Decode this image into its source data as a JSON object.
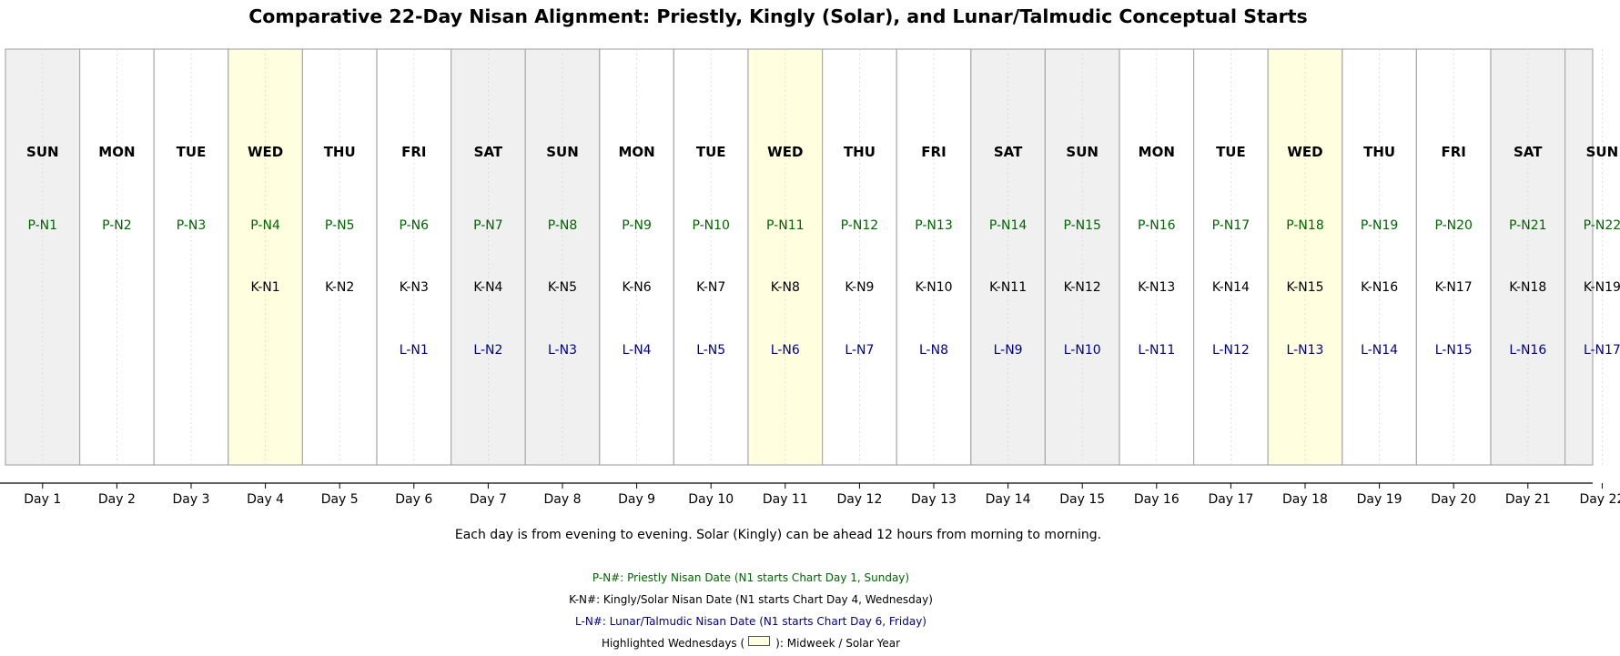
{
  "chart_data": {
    "type": "table",
    "title": "Comparative 22-Day Nisan Alignment: Priestly, Kingly (Solar), and Lunar/Talmudic Conceptual Starts",
    "x": [
      "Day 1",
      "Day 2",
      "Day 3",
      "Day 4",
      "Day 5",
      "Day 6",
      "Day 7",
      "Day 8",
      "Day 9",
      "Day 10",
      "Day 11",
      "Day 12",
      "Day 13",
      "Day 14",
      "Day 15",
      "Day 16",
      "Day 17",
      "Day 18",
      "Day 19",
      "Day 20",
      "Day 21",
      "Day 22"
    ],
    "weekdays": [
      "SUN",
      "MON",
      "TUE",
      "WED",
      "THU",
      "FRI",
      "SAT",
      "SUN",
      "MON",
      "TUE",
      "WED",
      "THU",
      "FRI",
      "SAT",
      "SUN",
      "MON",
      "TUE",
      "WED",
      "THU",
      "FRI",
      "SAT",
      "SUN"
    ],
    "series": [
      {
        "name": "P-N#",
        "values": [
          "P-N1",
          "P-N2",
          "P-N3",
          "P-N4",
          "P-N5",
          "P-N6",
          "P-N7",
          "P-N8",
          "P-N9",
          "P-N10",
          "P-N11",
          "P-N12",
          "P-N13",
          "P-N14",
          "P-N15",
          "P-N16",
          "P-N17",
          "P-N18",
          "P-N19",
          "P-N20",
          "P-N21",
          "P-N22"
        ],
        "color": "#006400"
      },
      {
        "name": "K-N#",
        "values": [
          "",
          "",
          "",
          "K-N1",
          "K-N2",
          "K-N3",
          "K-N4",
          "K-N5",
          "K-N6",
          "K-N7",
          "K-N8",
          "K-N9",
          "K-N10",
          "K-N11",
          "K-N12",
          "K-N13",
          "K-N14",
          "K-N15",
          "K-N16",
          "K-N17",
          "K-N18",
          "K-N19"
        ],
        "color": "#000000"
      },
      {
        "name": "L-N#",
        "values": [
          "",
          "",
          "",
          "",
          "",
          "L-N1",
          "L-N2",
          "L-N3",
          "L-N4",
          "L-N5",
          "L-N6",
          "L-N7",
          "L-N8",
          "L-N9",
          "L-N10",
          "L-N11",
          "L-N12",
          "L-N13",
          "L-N14",
          "L-N15",
          "L-N16",
          "L-N17"
        ],
        "color": "#00008b"
      }
    ],
    "highlighted_days": [
      4,
      11,
      18
    ],
    "weekend_days": [
      1,
      7,
      8,
      14,
      15,
      21,
      22
    ],
    "colors": {
      "highlight": "#ffffe0",
      "weekend": "#f0f0f0",
      "weekday": "#ffffff",
      "border": "#aaaaaa",
      "priestly": "#006400",
      "kingly": "#000000",
      "lunar": "#00008b"
    },
    "grid": true,
    "caption": "Each day is from evening to evening. Solar (Kingly) can be ahead 12 hours from morning to morning.",
    "legend": {
      "position": "bottom-center",
      "priestly": "P-N#: Priestly Nisan Date (N1 starts Chart Day 1, Sunday)",
      "kingly": "K-N#: Kingly/Solar Nisan Date (N1 starts Chart Day 4, Wednesday)",
      "lunar": "L-N#: Lunar/Talmudic Nisan Date (N1 starts Chart Day 6, Friday)",
      "highlight_prefix": "Highlighted Wednesdays (",
      "highlight_suffix": "): Midweek / Solar Year"
    }
  }
}
